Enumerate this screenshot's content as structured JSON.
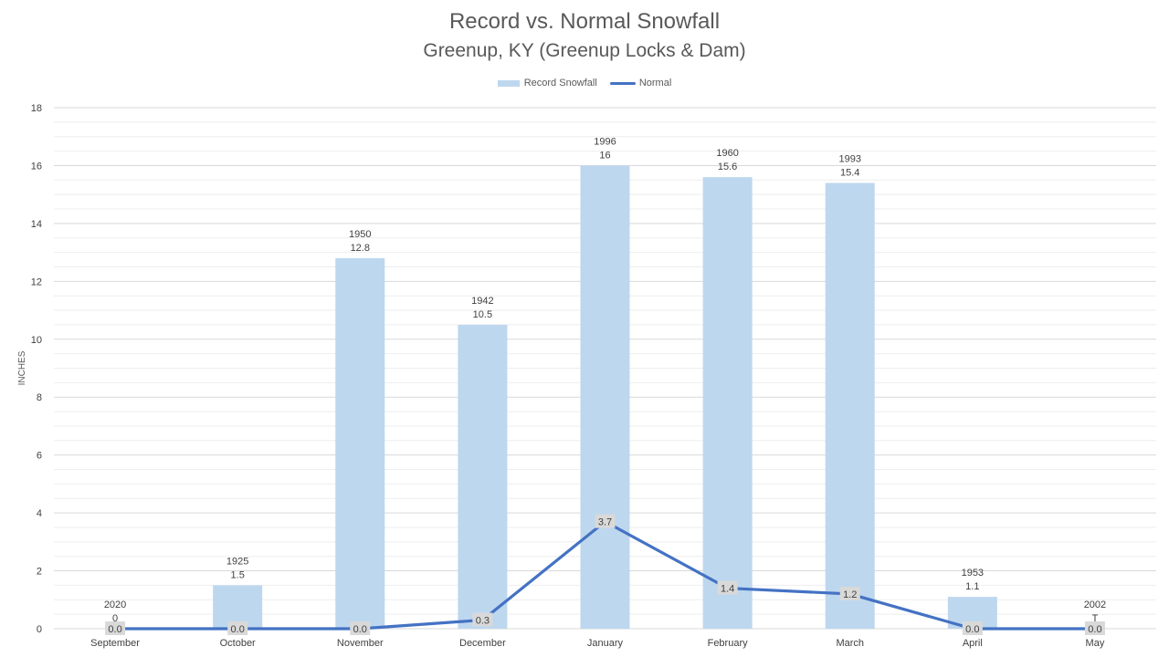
{
  "chart_data": {
    "type": "bar",
    "title": "Record vs. Normal Snowfall",
    "subtitle": "Greenup, KY (Greenup Locks & Dam)",
    "xlabel": "",
    "ylabel": "INCHES",
    "ylim": [
      0,
      18
    ],
    "yticks": [
      "0",
      "2",
      "4",
      "6",
      "8",
      "10",
      "12",
      "14",
      "16",
      "18"
    ],
    "grid": true,
    "legend_position": "top",
    "categories": [
      "September",
      "October",
      "November",
      "December",
      "January",
      "February",
      "March",
      "April",
      "May"
    ],
    "series": [
      {
        "name": "Record Snowfall",
        "type": "bar",
        "color": "#bdd7ee",
        "values": [
          0,
          1.5,
          12.8,
          10.5,
          16,
          15.6,
          15.4,
          1.1,
          0
        ],
        "labels": [
          "2020\n0",
          "1925\n1.5",
          "1950\n12.8",
          "1942\n10.5",
          "1996\n16",
          "1960\n15.6",
          "1993\n15.4",
          "1953\n1.1",
          "2002\nT"
        ]
      },
      {
        "name": "Normal",
        "type": "line",
        "color": "#4472c4",
        "values": [
          0.0,
          0.0,
          0.0,
          0.3,
          3.7,
          1.4,
          1.2,
          0.0,
          0.0
        ],
        "labels": [
          "0.0",
          "0.0",
          "0.0",
          "0.3",
          "3.7",
          "1.4",
          "1.2",
          "0.0",
          "0.0"
        ]
      }
    ]
  }
}
